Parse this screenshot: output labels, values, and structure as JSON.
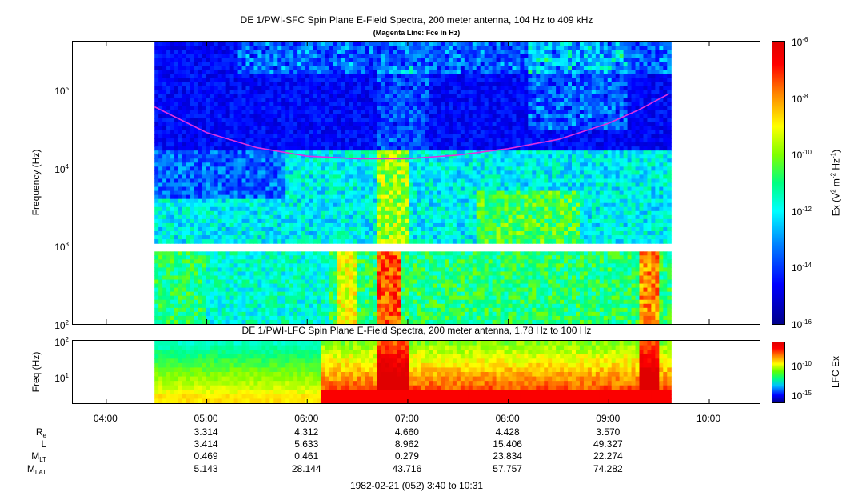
{
  "chart_data": [
    {
      "type": "heatmap",
      "title": "DE 1/PWI-SFC  Spin Plane E-Field Spectra, 200 meter antenna, 104 Hz to 409 kHz",
      "subtitle": "(Magenta Line: Fce in Hz)",
      "ylabel": "Frequency (Hz)",
      "yscale": "log",
      "ylim": [
        100,
        409000
      ],
      "y_ticks": [
        {
          "base": "10",
          "exp": "2",
          "value": 100
        },
        {
          "base": "10",
          "exp": "3",
          "value": 1000
        },
        {
          "base": "10",
          "exp": "4",
          "value": 10000
        },
        {
          "base": "10",
          "exp": "5",
          "value": 100000
        }
      ],
      "data_start_hour": 4.48,
      "data_end_hour": 9.62,
      "colorbar": {
        "label_prefix": "Ex (V",
        "label_sup1": "2",
        "label_mid": " m",
        "label_sup2": "-2",
        "label_hz": " Hz",
        "label_sup3": "-1",
        "label_suffix": ")",
        "scale": "log",
        "range": [
          1e-16,
          1e-06
        ],
        "ticks": [
          {
            "base": "10",
            "exp": "-6"
          },
          {
            "base": "10",
            "exp": "-8"
          },
          {
            "base": "10",
            "exp": "-10"
          },
          {
            "base": "10",
            "exp": "-12"
          },
          {
            "base": "10",
            "exp": "-14"
          },
          {
            "base": "10",
            "exp": "-16"
          }
        ]
      },
      "fce_line": {
        "name": "Fce",
        "color": "#e030e0",
        "hours": [
          4.48,
          5.0,
          5.5,
          6.0,
          6.5,
          7.0,
          7.5,
          8.0,
          8.5,
          9.0,
          9.3,
          9.6
        ],
        "values_hz": [
          60000,
          28000,
          18000,
          14000,
          13000,
          13000,
          14500,
          17500,
          23000,
          37000,
          55000,
          88000
        ]
      }
    },
    {
      "type": "heatmap",
      "title": "DE 1/PWI-LFC  Spin Plane E-Field Spectra, 200 meter antenna, 1.78 Hz to 100 Hz",
      "ylabel": "Freq (Hz)",
      "yscale": "log",
      "ylim": [
        1.78,
        100
      ],
      "y_ticks": [
        {
          "base": "10",
          "exp": "1",
          "value": 10
        },
        {
          "base": "10",
          "exp": "2",
          "value": 100
        }
      ],
      "colorbar": {
        "label": "LFC Ex",
        "ticks": [
          {
            "base": "10",
            "exp": "-10"
          },
          {
            "base": "10",
            "exp": "-15"
          }
        ]
      }
    }
  ],
  "time_axis": {
    "range_hours": [
      3.667,
      10.517
    ],
    "ticks": [
      {
        "hour": 4,
        "label": "04:00"
      },
      {
        "hour": 5,
        "label": "05:00"
      },
      {
        "hour": 6,
        "label": "06:00"
      },
      {
        "hour": 7,
        "label": "07:00"
      },
      {
        "hour": 8,
        "label": "08:00"
      },
      {
        "hour": 9,
        "label": "09:00"
      },
      {
        "hour": 10,
        "label": "10:00"
      }
    ]
  },
  "ephemeris": {
    "rows": [
      {
        "label": "R",
        "sub": "e",
        "values": [
          "3.314",
          "4.312",
          "4.660",
          "4.428",
          "3.570"
        ]
      },
      {
        "label": "L",
        "sub": "",
        "values": [
          "3.414",
          "5.633",
          "8.962",
          "15.406",
          "49.327"
        ]
      },
      {
        "label": "M",
        "sub": "LT",
        "values": [
          "0.469",
          "0.461",
          "0.279",
          "23.834",
          "22.274"
        ]
      },
      {
        "label": "M",
        "sub": "LAT",
        "values": [
          "5.143",
          "28.144",
          "43.716",
          "57.757",
          "74.282"
        ]
      }
    ],
    "hours": [
      5,
      6,
      7,
      8,
      9
    ]
  },
  "footer": {
    "date_range": "1982-02-21 (052) 3:40 to 10:31"
  }
}
